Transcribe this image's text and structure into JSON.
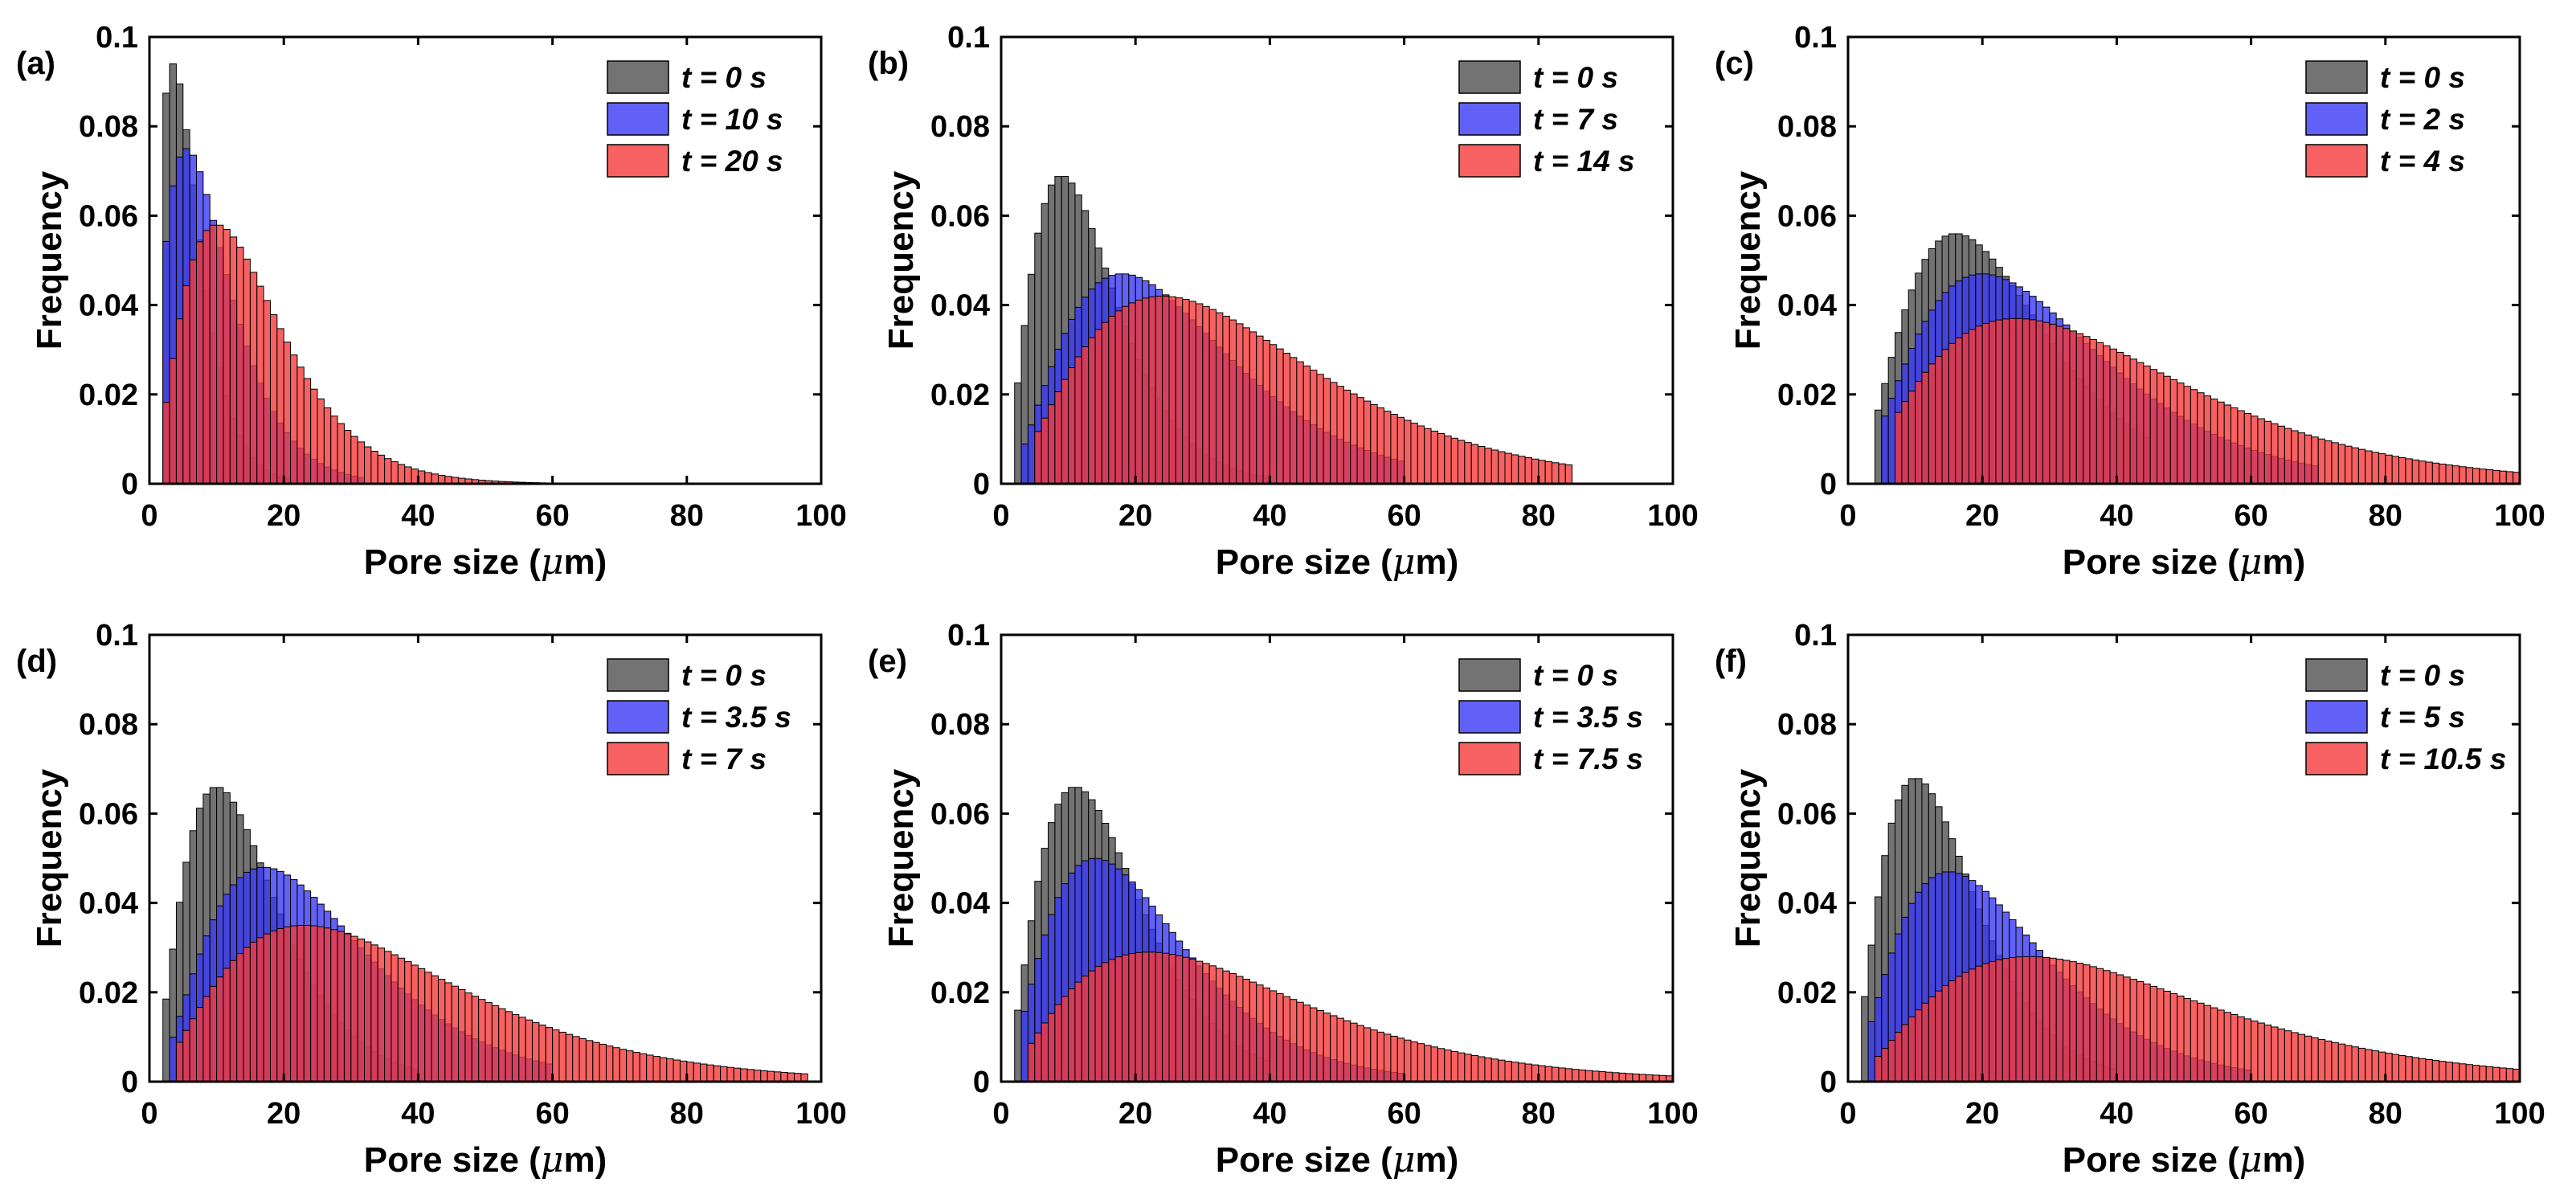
{
  "colors": {
    "series0": "#505050",
    "series1": "#3a3af5",
    "series2": "#f53a3a",
    "edge": "#000000"
  },
  "chart_data": [
    {
      "type": "bar",
      "panel_label": "(a)",
      "xlabel": "Pore size (",
      "xlabel_greek": "μ",
      "xlabel_unit": "m)",
      "ylabel": "Frequency",
      "xlim": [
        0,
        100
      ],
      "ylim": [
        0,
        0.1
      ],
      "xticks": [
        "0",
        "20",
        "40",
        "60",
        "80",
        "100"
      ],
      "yticks": [
        "0",
        "0.02",
        "0.04",
        "0.06",
        "0.08",
        "0.1"
      ],
      "legend_position": "top-right",
      "series": [
        {
          "name": "t = 0 s",
          "mode": 3.5,
          "peak": 0.094,
          "tail": 0.7,
          "lo": 2,
          "hi": 22
        },
        {
          "name": "t = 10 s",
          "mode": 5.5,
          "peak": 0.075,
          "tail": 0.75,
          "lo": 2,
          "hi": 32
        },
        {
          "name": "t = 20 s",
          "mode": 10,
          "peak": 0.058,
          "tail": 0.55,
          "lo": 2,
          "hi": 60
        }
      ]
    },
    {
      "type": "bar",
      "panel_label": "(b)",
      "xlabel": "Pore size (",
      "xlabel_greek": "μ",
      "xlabel_unit": "m)",
      "ylabel": "Frequency",
      "xlim": [
        0,
        100
      ],
      "ylim": [
        0,
        0.1
      ],
      "xticks": [
        "0",
        "20",
        "40",
        "60",
        "80",
        "100"
      ],
      "yticks": [
        "0",
        "0.02",
        "0.04",
        "0.06",
        "0.08",
        "0.1"
      ],
      "legend_position": "top-right",
      "series": [
        {
          "name": "t = 0 s",
          "mode": 9,
          "peak": 0.069,
          "tail": 0.5,
          "lo": 2,
          "hi": 40
        },
        {
          "name": "t = 7 s",
          "mode": 18,
          "peak": 0.047,
          "tail": 0.5,
          "lo": 3,
          "hi": 60
        },
        {
          "name": "t = 14 s",
          "mode": 24,
          "peak": 0.042,
          "tail": 0.55,
          "lo": 5,
          "hi": 85
        }
      ]
    },
    {
      "type": "bar",
      "panel_label": "(c)",
      "xlabel": "Pore size (",
      "xlabel_greek": "μ",
      "xlabel_unit": "m)",
      "ylabel": "Frequency",
      "xlim": [
        0,
        100
      ],
      "ylim": [
        0,
        0.1
      ],
      "xticks": [
        "0",
        "20",
        "40",
        "60",
        "80",
        "100"
      ],
      "yticks": [
        "0",
        "0.02",
        "0.04",
        "0.06",
        "0.08",
        "0.1"
      ],
      "legend_position": "top-right",
      "series": [
        {
          "name": "t = 0 s",
          "mode": 16,
          "peak": 0.056,
          "tail": 0.45,
          "lo": 4,
          "hi": 45
        },
        {
          "name": "t = 2 s",
          "mode": 20,
          "peak": 0.047,
          "tail": 0.5,
          "lo": 5,
          "hi": 70
        },
        {
          "name": "t = 4 s",
          "mode": 25,
          "peak": 0.037,
          "tail": 0.6,
          "lo": 7,
          "hi": 100
        }
      ]
    },
    {
      "type": "bar",
      "panel_label": "(d)",
      "xlabel": "Pore size (",
      "xlabel_greek": "μ",
      "xlabel_unit": "m)",
      "ylabel": "Frequency",
      "xlim": [
        0,
        100
      ],
      "ylim": [
        0,
        0.1
      ],
      "xticks": [
        "0",
        "20",
        "40",
        "60",
        "80",
        "100"
      ],
      "yticks": [
        "0",
        "0.02",
        "0.04",
        "0.06",
        "0.08",
        "0.1"
      ],
      "legend_position": "top-right",
      "series": [
        {
          "name": "t = 0 s",
          "mode": 10,
          "peak": 0.066,
          "tail": 0.5,
          "lo": 2,
          "hi": 40
        },
        {
          "name": "t = 3.5 s",
          "mode": 17,
          "peak": 0.048,
          "tail": 0.5,
          "lo": 3,
          "hi": 60
        },
        {
          "name": "t = 7 s",
          "mode": 23,
          "peak": 0.035,
          "tail": 0.6,
          "lo": 4,
          "hi": 98
        }
      ]
    },
    {
      "type": "bar",
      "panel_label": "(e)",
      "xlabel": "Pore size (",
      "xlabel_greek": "μ",
      "xlabel_unit": "m)",
      "ylabel": "Frequency",
      "xlim": [
        0,
        100
      ],
      "ylim": [
        0,
        0.1
      ],
      "xticks": [
        "0",
        "20",
        "40",
        "60",
        "80",
        "100"
      ],
      "yticks": [
        "0",
        "0.02",
        "0.04",
        "0.06",
        "0.08",
        "0.1"
      ],
      "legend_position": "top-right",
      "series": [
        {
          "name": "t = 0 s",
          "mode": 11,
          "peak": 0.066,
          "tail": 0.5,
          "lo": 2,
          "hi": 40
        },
        {
          "name": "t = 3.5 s",
          "mode": 14,
          "peak": 0.05,
          "tail": 0.55,
          "lo": 3,
          "hi": 60
        },
        {
          "name": "t = 7.5 s",
          "mode": 22,
          "peak": 0.029,
          "tail": 0.65,
          "lo": 4,
          "hi": 100
        }
      ]
    },
    {
      "type": "bar",
      "panel_label": "(f)",
      "xlabel": "Pore size (",
      "xlabel_greek": "μ",
      "xlabel_unit": "m)",
      "ylabel": "Frequency",
      "xlim": [
        0,
        100
      ],
      "ylim": [
        0,
        0.1
      ],
      "xticks": [
        "0",
        "20",
        "40",
        "60",
        "80",
        "100"
      ],
      "yticks": [
        "0",
        "0.02",
        "0.04",
        "0.06",
        "0.08",
        "0.1"
      ],
      "legend_position": "top-right",
      "series": [
        {
          "name": "t = 0 s",
          "mode": 10,
          "peak": 0.068,
          "tail": 0.5,
          "lo": 2,
          "hi": 40
        },
        {
          "name": "t = 5 s",
          "mode": 15,
          "peak": 0.047,
          "tail": 0.55,
          "lo": 3,
          "hi": 60
        },
        {
          "name": "t = 10.5 s",
          "mode": 27,
          "peak": 0.028,
          "tail": 0.6,
          "lo": 4,
          "hi": 100
        }
      ]
    }
  ]
}
